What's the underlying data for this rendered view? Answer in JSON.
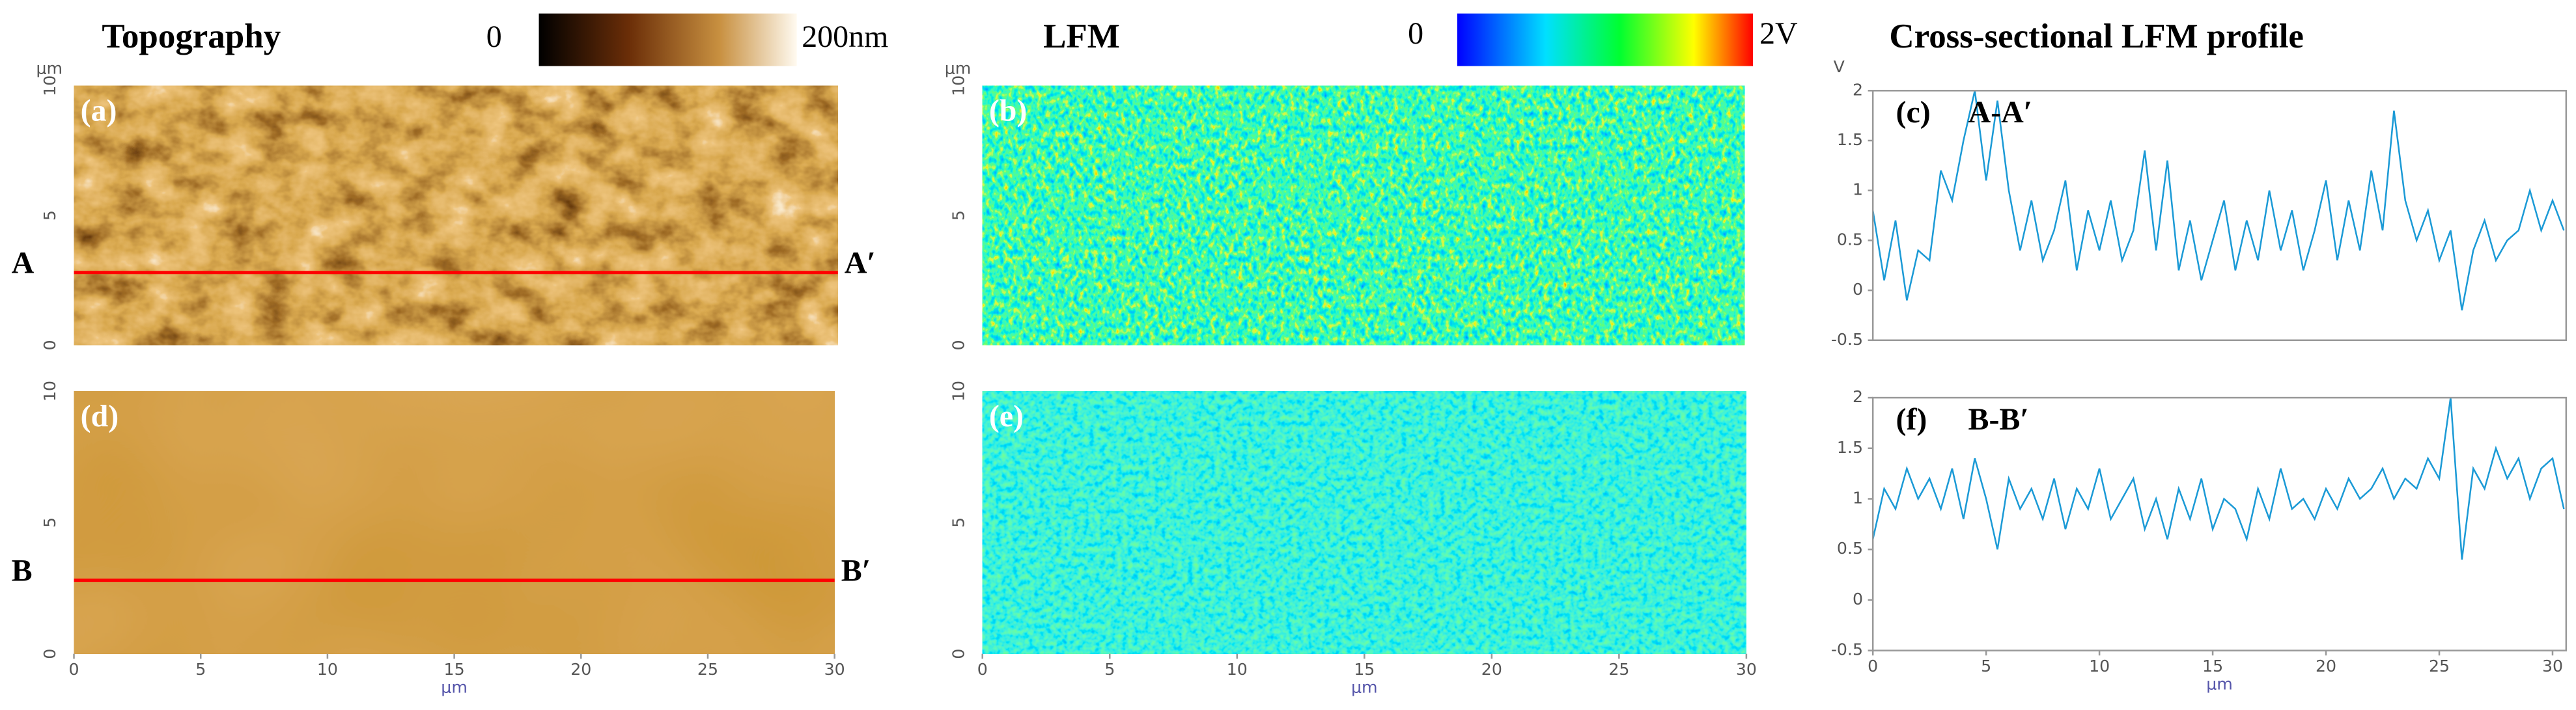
{
  "figure": {
    "topo_title": "Topography",
    "topo_min": "0",
    "topo_max": "200nm",
    "lfm_title": "LFM",
    "lfm_min": "0",
    "lfm_max": "2V",
    "profile_title": "Cross-sectional LFM profile"
  },
  "chart_data": [
    {
      "type": "image",
      "label": "(a)",
      "ylabel": "μm",
      "ylim": [
        0,
        10
      ],
      "yticks": [
        0,
        5,
        10
      ],
      "xlim": [
        0,
        30
      ],
      "texture": "topo",
      "cut": {
        "y": 2.8,
        "left": "A",
        "right": "A′",
        "color": "#ff0000"
      }
    },
    {
      "type": "image",
      "label": "(b)",
      "ylabel": "μm",
      "ylim": [
        0,
        10
      ],
      "yticks": [
        0,
        5,
        10
      ],
      "xlim": [
        0,
        30
      ],
      "texture": "lfm"
    },
    {
      "type": "line",
      "label": "(c)",
      "title": "A-A′",
      "ylabel": "V",
      "ylim": [
        -0.5,
        2
      ],
      "yticks": [
        -0.5,
        0,
        0.5,
        1,
        1.5,
        2
      ],
      "xlim": [
        0,
        30.6
      ],
      "color": "#1b9ad6",
      "x": [
        0,
        0.5,
        1,
        1.5,
        2,
        2.5,
        3,
        3.5,
        4,
        4.5,
        5,
        5.5,
        6,
        6.5,
        7,
        7.5,
        8,
        8.5,
        9,
        9.5,
        10,
        10.5,
        11,
        11.5,
        12,
        12.5,
        13,
        13.5,
        14,
        14.5,
        15,
        15.5,
        16,
        16.5,
        17,
        17.5,
        18,
        18.5,
        19,
        19.5,
        20,
        20.5,
        21,
        21.5,
        22,
        22.5,
        23,
        23.5,
        24,
        24.5,
        25,
        25.5,
        26,
        26.5,
        27,
        27.5,
        28,
        28.5,
        29,
        29.5,
        30,
        30.5
      ],
      "values": [
        0.8,
        0.1,
        0.7,
        -0.1,
        0.4,
        0.3,
        1.2,
        0.9,
        1.5,
        2.0,
        1.1,
        1.9,
        1.0,
        0.4,
        0.9,
        0.3,
        0.6,
        1.1,
        0.2,
        0.8,
        0.4,
        0.9,
        0.3,
        0.6,
        1.4,
        0.4,
        1.3,
        0.2,
        0.7,
        0.1,
        0.5,
        0.9,
        0.2,
        0.7,
        0.3,
        1.0,
        0.4,
        0.8,
        0.2,
        0.6,
        1.1,
        0.3,
        0.9,
        0.4,
        1.2,
        0.6,
        1.8,
        0.9,
        0.5,
        0.8,
        0.3,
        0.6,
        -0.2,
        0.4,
        0.7,
        0.3,
        0.5,
        0.6,
        1.0,
        0.6,
        0.9,
        0.6
      ]
    },
    {
      "type": "image",
      "label": "(d)",
      "ylim": [
        0,
        10
      ],
      "yticks": [
        0,
        5,
        10
      ],
      "xlim": [
        0,
        30
      ],
      "xticks": [
        0,
        5,
        10,
        15,
        20,
        25,
        30
      ],
      "xlabel": "μm",
      "texture": "flat",
      "cut": {
        "y": 2.8,
        "left": "B",
        "right": "B′",
        "color": "#ff0000"
      }
    },
    {
      "type": "image",
      "label": "(e)",
      "ylim": [
        0,
        10
      ],
      "yticks": [
        0,
        5,
        10
      ],
      "xlim": [
        0,
        30
      ],
      "xticks": [
        0,
        5,
        10,
        15,
        20,
        25,
        30
      ],
      "xlabel": "μm",
      "texture": "lfm2"
    },
    {
      "type": "line",
      "label": "(f)",
      "title": "B-B′",
      "ylim": [
        -0.5,
        2
      ],
      "yticks": [
        -0.5,
        0,
        0.5,
        1,
        1.5,
        2
      ],
      "xlim": [
        0,
        30.6
      ],
      "xticks": [
        0,
        5,
        10,
        15,
        20,
        25,
        30
      ],
      "xlabel": "μm",
      "color": "#1b9ad6",
      "x": [
        0,
        0.5,
        1,
        1.5,
        2,
        2.5,
        3,
        3.5,
        4,
        4.5,
        5,
        5.5,
        6,
        6.5,
        7,
        7.5,
        8,
        8.5,
        9,
        9.5,
        10,
        10.5,
        11,
        11.5,
        12,
        12.5,
        13,
        13.5,
        14,
        14.5,
        15,
        15.5,
        16,
        16.5,
        17,
        17.5,
        18,
        18.5,
        19,
        19.5,
        20,
        20.5,
        21,
        21.5,
        22,
        22.5,
        23,
        23.5,
        24,
        24.5,
        25,
        25.5,
        26,
        26.5,
        27,
        27.5,
        28,
        28.5,
        29,
        29.5,
        30,
        30.5
      ],
      "values": [
        0.6,
        1.1,
        0.9,
        1.3,
        1.0,
        1.2,
        0.9,
        1.3,
        0.8,
        1.4,
        1.0,
        0.5,
        1.2,
        0.9,
        1.1,
        0.8,
        1.2,
        0.7,
        1.1,
        0.9,
        1.3,
        0.8,
        1.0,
        1.2,
        0.7,
        1.0,
        0.6,
        1.1,
        0.8,
        1.2,
        0.7,
        1.0,
        0.9,
        0.6,
        1.1,
        0.8,
        1.3,
        0.9,
        1.0,
        0.8,
        1.1,
        0.9,
        1.2,
        1.0,
        1.1,
        1.3,
        1.0,
        1.2,
        1.1,
        1.4,
        1.2,
        2.0,
        0.4,
        1.3,
        1.1,
        1.5,
        1.2,
        1.4,
        1.0,
        1.3,
        1.4,
        0.9
      ]
    }
  ]
}
